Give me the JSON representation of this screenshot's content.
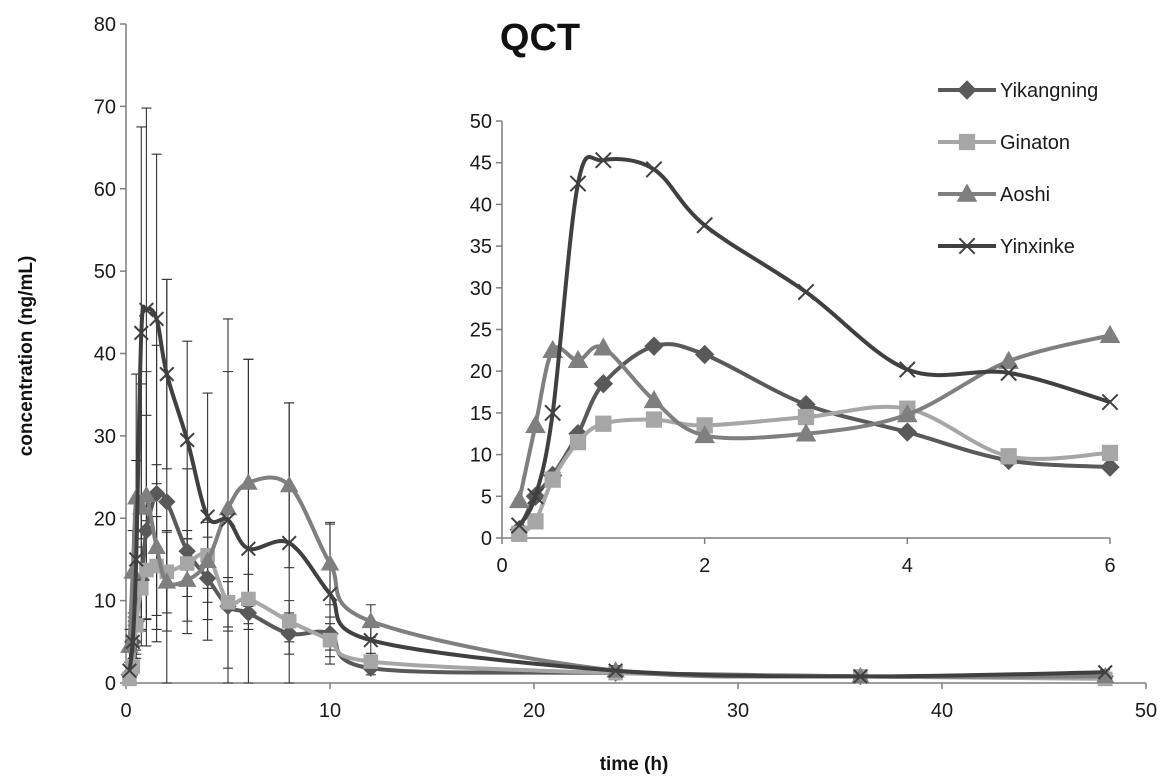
{
  "chart_data": [
    {
      "type": "line",
      "title": "QCT",
      "xlabel": "time (h)",
      "ylabel": "concentration (ng/mL)",
      "xlim": [
        0,
        50
      ],
      "ylim": [
        0,
        80
      ],
      "x_ticks": [
        0,
        10,
        20,
        30,
        40,
        50
      ],
      "y_ticks": [
        0,
        10,
        20,
        30,
        40,
        50,
        60,
        70,
        80
      ],
      "grid": false,
      "legend": "top-right",
      "x": [
        0.17,
        0.33,
        0.5,
        0.75,
        1,
        1.5,
        2,
        3,
        4,
        5,
        6,
        8,
        10,
        12,
        24,
        36,
        48
      ],
      "series": [
        {
          "name": "Yikangning",
          "marker": "diamond",
          "color": "#595959",
          "values": [
            1,
            5,
            7.5,
            12.5,
            18.5,
            23,
            22,
            16,
            12.7,
            9.3,
            8.5,
            6,
            6,
            1.8,
            1.2,
            0.8,
            0.8
          ],
          "error": [
            0.5,
            2,
            4,
            8,
            14,
            18,
            27,
            10,
            5,
            3,
            2,
            2.5,
            2,
            0.8,
            0.5,
            0.3,
            0.3
          ]
        },
        {
          "name": "Ginaton",
          "marker": "square",
          "color": "#a6a6a6",
          "values": [
            0.5,
            2,
            7,
            11.5,
            13.7,
            14.2,
            13.5,
            14.5,
            15.5,
            9.8,
            10.2,
            7.5,
            5.2,
            2.6,
            1.2,
            0.8,
            0.5
          ],
          "error": [
            0.3,
            1,
            3,
            5,
            6,
            6,
            5,
            4,
            4,
            3,
            3,
            2.5,
            2,
            1,
            0.5,
            0.3,
            0.2
          ]
        },
        {
          "name": "Aoshi",
          "marker": "triangle",
          "color": "#7f7f7f",
          "values": [
            4.5,
            13.5,
            22.5,
            21.3,
            22.8,
            16.5,
            12.3,
            12.5,
            14.8,
            21.2,
            24.3,
            24,
            14.5,
            7.5,
            1.5,
            0.8,
            0.8
          ],
          "error": [
            2,
            5,
            15,
            15,
            15,
            10,
            6,
            5,
            5,
            23,
            15,
            10,
            5,
            2,
            0.6,
            0.3,
            0.3
          ]
        },
        {
          "name": "Yinxinke",
          "marker": "x",
          "color": "#404040",
          "values": [
            1.5,
            5,
            15,
            42.5,
            45.3,
            44.2,
            37.5,
            29.5,
            20.2,
            19.8,
            16.3,
            17,
            10.8,
            5.2,
            1.5,
            0.8,
            1.3
          ],
          "error": [
            1,
            3,
            12,
            25,
            24.5,
            20,
            11.5,
            12,
            15,
            18,
            23,
            17,
            8.5,
            2,
            0.6,
            0.3,
            0.3
          ]
        }
      ]
    },
    {
      "type": "line",
      "title": "",
      "xlabel": "",
      "ylabel": "",
      "xlim": [
        0,
        6
      ],
      "ylim": [
        0,
        50
      ],
      "x_ticks": [
        0,
        2,
        4,
        6
      ],
      "y_ticks": [
        0,
        5,
        10,
        15,
        20,
        25,
        30,
        35,
        40,
        45,
        50
      ],
      "grid": false,
      "x": [
        0.17,
        0.33,
        0.5,
        0.75,
        1,
        1.5,
        2,
        3,
        4,
        5,
        6
      ],
      "series": [
        {
          "name": "Yikangning",
          "marker": "diamond",
          "color": "#595959",
          "values": [
            1,
            5,
            7.5,
            12.5,
            18.5,
            23,
            22,
            16,
            12.7,
            9.3,
            8.5
          ]
        },
        {
          "name": "Ginaton",
          "marker": "square",
          "color": "#a6a6a6",
          "values": [
            0.5,
            2,
            7,
            11.5,
            13.7,
            14.2,
            13.5,
            14.5,
            15.5,
            9.8,
            10.2
          ]
        },
        {
          "name": "Aoshi",
          "marker": "triangle",
          "color": "#7f7f7f",
          "values": [
            4.5,
            13.5,
            22.5,
            21.3,
            22.8,
            16.5,
            12.3,
            12.5,
            14.8,
            21.2,
            24.3
          ]
        },
        {
          "name": "Yinxinke",
          "marker": "x",
          "color": "#404040",
          "values": [
            1.5,
            5,
            15,
            42.5,
            45.3,
            44.2,
            37.5,
            29.5,
            20.2,
            19.8,
            16.3
          ]
        }
      ]
    }
  ]
}
